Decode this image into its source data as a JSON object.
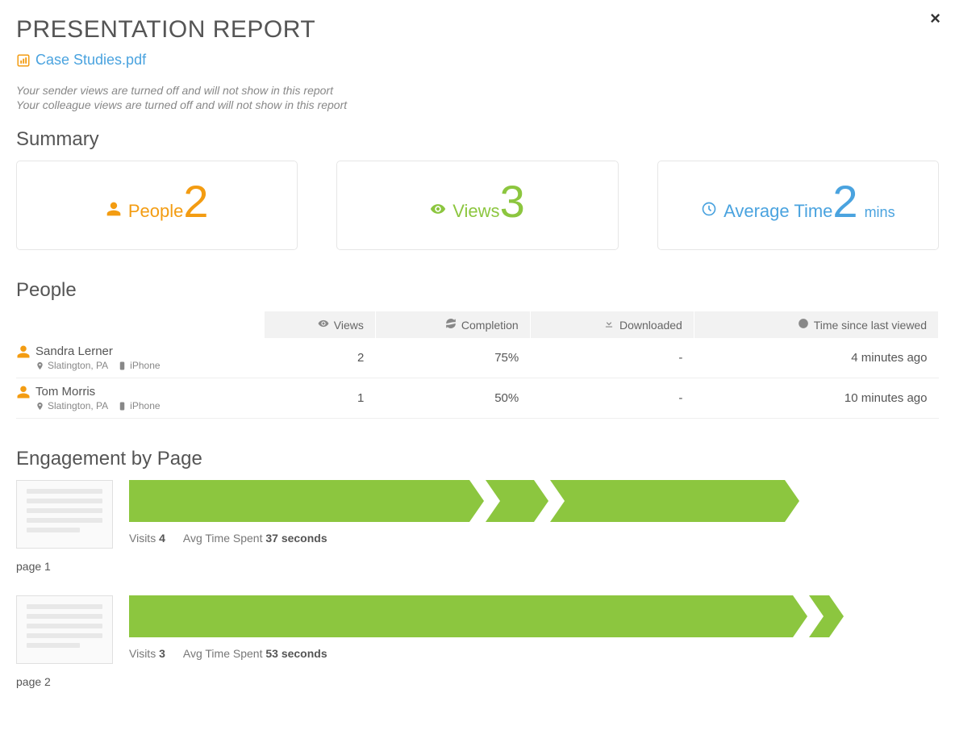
{
  "colors": {
    "orange": "#f39c12",
    "green": "#8cc63f",
    "blue": "#4aa3df",
    "text": "#555555",
    "muted": "#888888",
    "border": "#e6e6e6",
    "header_bg": "#f2f2f2"
  },
  "header": {
    "title": "PRESENTATION REPORT",
    "file_name": "Case Studies.pdf"
  },
  "notices": [
    "Your sender views are turned off and will not show in this report",
    "Your colleague views are turned off and will not show in this report"
  ],
  "summary": {
    "title": "Summary",
    "cards": [
      {
        "icon": "person-icon",
        "label": "People",
        "value": "2",
        "unit": "",
        "color": "c-orange"
      },
      {
        "icon": "eye-icon",
        "label": "Views",
        "value": "3",
        "unit": "",
        "color": "c-green"
      },
      {
        "icon": "clock-icon",
        "label": "Average Time",
        "value": "2",
        "unit": "mins",
        "color": "c-blue"
      }
    ]
  },
  "people": {
    "title": "People",
    "columns": [
      {
        "icon": "eye-icon",
        "label": "Views"
      },
      {
        "icon": "refresh-icon",
        "label": "Completion"
      },
      {
        "icon": "download-icon",
        "label": "Downloaded"
      },
      {
        "icon": "clock-icon",
        "label": "Time since last viewed"
      }
    ],
    "rows": [
      {
        "name": "Sandra Lerner",
        "location": "Slatington, PA",
        "device": "iPhone",
        "views": "2",
        "completion": "75%",
        "downloaded": "-",
        "time_since": "4 minutes ago"
      },
      {
        "name": "Tom Morris",
        "location": "Slatington, PA",
        "device": "iPhone",
        "views": "1",
        "completion": "50%",
        "downloaded": "-",
        "time_since": "10 minutes ago"
      }
    ]
  },
  "engagement": {
    "title": "Engagement by Page",
    "visits_label": "Visits",
    "avg_label": "Avg Time Spent",
    "page_label_prefix": "page",
    "bar_color": "#8cc63f",
    "pages": [
      {
        "number": "1",
        "visits": "4",
        "avg_time": "37 seconds",
        "segments": [
          {
            "left_pct": 0,
            "width_pct": 42
          },
          {
            "left_pct": 44,
            "width_pct": 6,
            "notch": true
          },
          {
            "left_pct": 52,
            "width_pct": 29,
            "notch": true
          }
        ]
      },
      {
        "number": "2",
        "visits": "3",
        "avg_time": "53 seconds",
        "segments": [
          {
            "left_pct": 0,
            "width_pct": 82
          },
          {
            "left_pct": 84,
            "width_pct": 2.5,
            "notch": true
          }
        ]
      }
    ]
  }
}
